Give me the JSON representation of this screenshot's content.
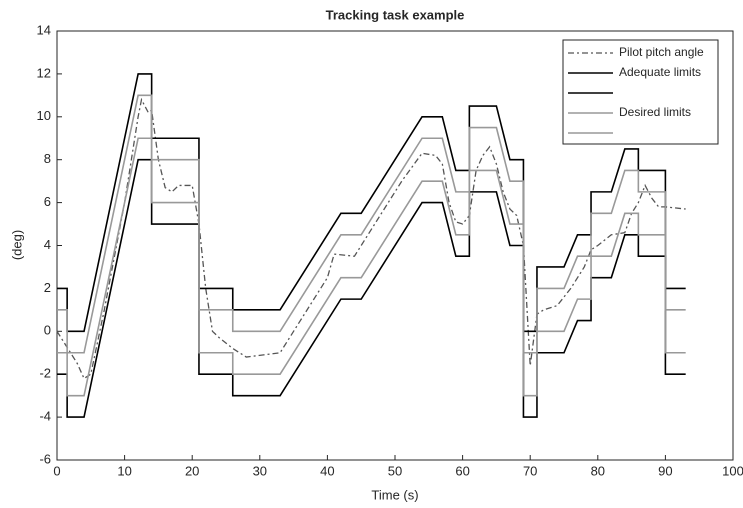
{
  "chart_data": {
    "type": "line",
    "title": "Tracking task example",
    "x_label": "Time (s)",
    "y_label": "(deg)",
    "xlim": [
      0,
      100
    ],
    "xticks": [
      0,
      10,
      20,
      30,
      40,
      50,
      60,
      70,
      80,
      90,
      100
    ],
    "ylim": [
      -6,
      14
    ],
    "yticks": [
      -6,
      -4,
      -2,
      0,
      2,
      4,
      6,
      8,
      10,
      12,
      14
    ],
    "grid": false,
    "legend": "upper right",
    "series": [
      {
        "name": "Pilot pitch angle",
        "color": "#555555",
        "dash": "dashdot",
        "x": [
          0,
          1,
          3,
          4,
          5,
          7,
          10,
          12,
          12.5,
          13.5,
          14,
          15,
          16,
          17,
          18,
          20,
          21,
          22,
          23,
          24,
          26,
          28,
          33,
          36,
          40,
          41,
          44,
          47,
          51,
          54,
          56,
          57,
          58,
          59,
          60,
          61,
          62,
          63,
          64,
          65,
          66,
          67,
          68,
          69,
          70,
          71,
          72,
          74,
          76,
          78,
          79,
          80,
          82,
          84,
          85,
          86,
          87,
          88,
          89,
          90,
          93
        ],
        "values": [
          0,
          -0.5,
          -1.5,
          -2.2,
          -2,
          1,
          6,
          10,
          10.8,
          10.2,
          10.3,
          8,
          6.7,
          6.5,
          6.8,
          6.8,
          5,
          2,
          0,
          -0.3,
          -0.8,
          -1.2,
          -1,
          0.5,
          2.5,
          3.6,
          3.5,
          5,
          7,
          8.3,
          8.2,
          7.8,
          6,
          5.1,
          5,
          5.4,
          7.5,
          8.2,
          8.6,
          7.8,
          6.5,
          5.7,
          5.4,
          4,
          -1.6,
          0.8,
          1,
          1.2,
          2,
          3,
          3.8,
          4,
          4.5,
          4.6,
          5.5,
          6,
          6.8,
          6.2,
          5.8,
          5.8,
          5.7
        ]
      },
      {
        "name": "Adequate limits",
        "color": "#000000",
        "x": [
          0,
          1.5,
          1.5,
          4,
          12,
          14,
          14,
          21,
          21,
          26,
          26,
          33,
          42,
          45,
          54,
          57,
          59,
          61,
          61,
          65,
          67,
          69,
          69,
          71,
          71,
          75,
          77,
          79,
          79,
          82,
          84,
          86,
          86,
          90,
          90,
          93
        ],
        "values": [
          2,
          2,
          0,
          0,
          12,
          12,
          9,
          9,
          2,
          2,
          1,
          1,
          5.5,
          5.5,
          10,
          10,
          7.5,
          7.5,
          10.5,
          10.5,
          8,
          8,
          0,
          0,
          3,
          3,
          4.5,
          4.5,
          6.5,
          6.5,
          8.5,
          8.5,
          7.5,
          7.5,
          2,
          2
        ]
      },
      {
        "name": null,
        "color": "#000000",
        "x": [
          0,
          1.5,
          1.5,
          4,
          12,
          14,
          14,
          21,
          21,
          26,
          26,
          33,
          42,
          45,
          54,
          57,
          59,
          61,
          61,
          65,
          67,
          69,
          69,
          71,
          71,
          75,
          77,
          79,
          79,
          82,
          84,
          86,
          86,
          90,
          90,
          93
        ],
        "values": [
          -2,
          -2,
          -4,
          -4,
          8,
          8,
          5,
          5,
          -2,
          -2,
          -3,
          -3,
          1.5,
          1.5,
          6,
          6,
          3.5,
          3.5,
          6.5,
          6.5,
          4,
          4,
          -4,
          -4,
          -1,
          -1,
          0.5,
          0.5,
          2.5,
          2.5,
          4.5,
          4.5,
          3.5,
          3.5,
          -2,
          -2
        ]
      },
      {
        "name": "Desired limits",
        "color": "#999999",
        "x": [
          0,
          1.5,
          1.5,
          4,
          12,
          14,
          14,
          21,
          21,
          26,
          26,
          33,
          42,
          45,
          54,
          57,
          59,
          61,
          61,
          65,
          67,
          69,
          69,
          71,
          71,
          75,
          77,
          79,
          79,
          82,
          84,
          86,
          86,
          90,
          90,
          93
        ],
        "values": [
          1,
          1,
          -1,
          -1,
          11,
          11,
          8,
          8,
          1,
          1,
          0,
          0,
          4.5,
          4.5,
          9,
          9,
          6.5,
          6.5,
          9.5,
          9.5,
          7,
          7,
          -1,
          -1,
          2,
          2,
          3.5,
          3.5,
          5.5,
          5.5,
          7.5,
          7.5,
          6.5,
          6.5,
          1,
          1
        ]
      },
      {
        "name": null,
        "color": "#999999",
        "x": [
          0,
          1.5,
          1.5,
          4,
          12,
          14,
          14,
          21,
          21,
          26,
          26,
          33,
          42,
          45,
          54,
          57,
          59,
          61,
          61,
          65,
          67,
          69,
          69,
          71,
          71,
          75,
          77,
          79,
          79,
          82,
          84,
          86,
          86,
          90,
          90,
          93
        ],
        "values": [
          -1,
          -1,
          -3,
          -3,
          9,
          9,
          6,
          6,
          -1,
          -1,
          -2,
          -2,
          2.5,
          2.5,
          7,
          7,
          4.5,
          4.5,
          7.5,
          7.5,
          5,
          5,
          -3,
          -3,
          0,
          0,
          1.5,
          1.5,
          3.5,
          3.5,
          5.5,
          5.5,
          4.5,
          4.5,
          -1,
          -1
        ]
      }
    ]
  }
}
